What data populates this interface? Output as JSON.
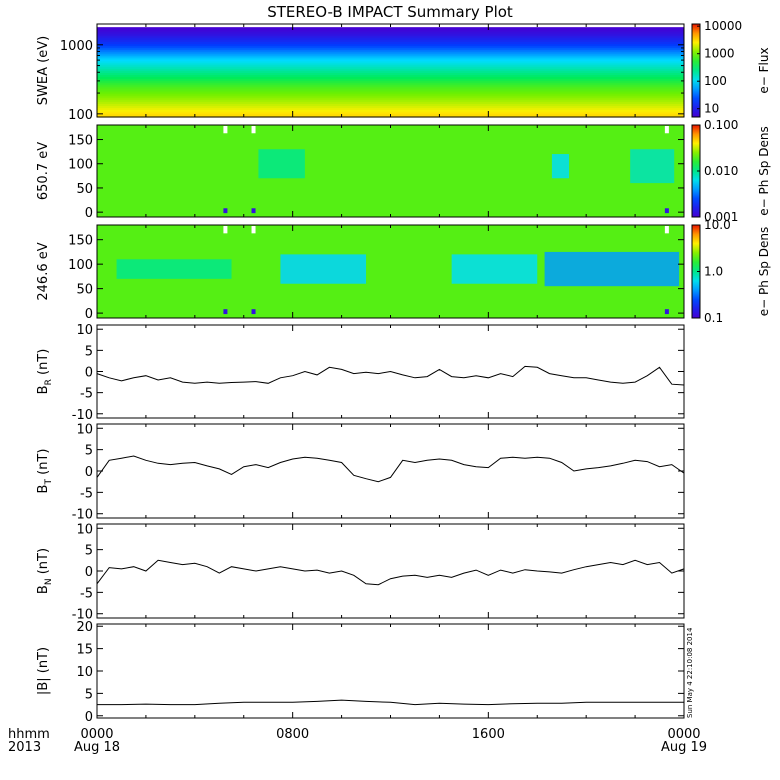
{
  "title": "STEREO-B IMPACT Summary Plot",
  "stamp": "Sun May  4 22:10:08 2014",
  "time_axis": {
    "corner_labels": [
      "hhmm",
      "2013"
    ],
    "ticks": [
      {
        "value": 0,
        "top": "0000",
        "bottom": "Aug 18"
      },
      {
        "value": 8,
        "top": "0800",
        "bottom": ""
      },
      {
        "value": 16,
        "top": "1600",
        "bottom": ""
      },
      {
        "value": 24,
        "top": "0000",
        "bottom": "Aug 19"
      }
    ],
    "range_hours": [
      0,
      24
    ]
  },
  "chart_data": [
    {
      "type": "heatmap",
      "ylabel": "SWEA (eV)",
      "y_scale": "log",
      "ylim": [
        90,
        2000
      ],
      "y_ticks": [
        {
          "v": 100,
          "t": "100"
        },
        {
          "v": 1000,
          "t": "1000"
        }
      ],
      "colorbar": {
        "label": "e− Flux",
        "scale": "log",
        "range": [
          5,
          12000
        ],
        "ticks": [
          {
            "v": 10,
            "t": "10"
          },
          {
            "v": 100,
            "t": "100"
          },
          {
            "v": 1000,
            "t": "1000"
          },
          {
            "v": 10000,
            "t": "10000"
          }
        ]
      },
      "energy_profile": [
        {
          "energy": 100,
          "flux": 3000
        },
        {
          "energy": 150,
          "flux": 1500
        },
        {
          "energy": 250,
          "flux": 700
        },
        {
          "energy": 400,
          "flux": 250
        },
        {
          "energy": 650,
          "flux": 80
        },
        {
          "energy": 1000,
          "flux": 20
        },
        {
          "energy": 1400,
          "flux": 8
        },
        {
          "energy": 1800,
          "flux": 5
        }
      ]
    },
    {
      "type": "heatmap",
      "ylabel": "650.7 eV",
      "ylim": [
        -10,
        180
      ],
      "y_ticks": [
        {
          "v": 0,
          "t": "0"
        },
        {
          "v": 50,
          "t": "50"
        },
        {
          "v": 100,
          "t": "100"
        },
        {
          "v": 150,
          "t": "150"
        }
      ],
      "colorbar": {
        "label": "e− Ph Sp Dens",
        "scale": "log",
        "range": [
          0.001,
          0.1
        ],
        "ticks": [
          {
            "v": 0.001,
            "t": "0.001"
          },
          {
            "v": 0.01,
            "t": "0.010"
          },
          {
            "v": 0.1,
            "t": "0.100"
          }
        ]
      },
      "background_level": 0.02,
      "depletions": [
        {
          "start": 6.6,
          "end": 8.5,
          "pitch_lo": 70,
          "pitch_hi": 130,
          "level": 0.01
        },
        {
          "start": 18.6,
          "end": 19.3,
          "pitch_lo": 70,
          "pitch_hi": 120,
          "level": 0.006
        },
        {
          "start": 21.8,
          "end": 23.6,
          "pitch_lo": 60,
          "pitch_hi": 130,
          "level": 0.008
        }
      ],
      "gaps_hours": [
        5.25,
        6.4,
        23.3
      ]
    },
    {
      "type": "heatmap",
      "ylabel": "246.6 eV",
      "ylim": [
        -10,
        180
      ],
      "y_ticks": [
        {
          "v": 0,
          "t": "0"
        },
        {
          "v": 50,
          "t": "50"
        },
        {
          "v": 100,
          "t": "100"
        },
        {
          "v": 150,
          "t": "150"
        }
      ],
      "colorbar": {
        "label": "e− Ph Sp Dens",
        "scale": "log",
        "range": [
          0.1,
          10
        ],
        "ticks": [
          {
            "v": 0.1,
            "t": "0.1"
          },
          {
            "v": 1,
            "t": "1.0"
          },
          {
            "v": 10,
            "t": "10.0"
          }
        ]
      },
      "background_level": 2.0,
      "depletions": [
        {
          "start": 0.8,
          "end": 5.5,
          "pitch_lo": 70,
          "pitch_hi": 110,
          "level": 1.0
        },
        {
          "start": 7.5,
          "end": 11.0,
          "pitch_lo": 60,
          "pitch_hi": 120,
          "level": 0.55
        },
        {
          "start": 14.5,
          "end": 18.0,
          "pitch_lo": 60,
          "pitch_hi": 120,
          "level": 0.6
        },
        {
          "start": 18.3,
          "end": 23.8,
          "pitch_lo": 55,
          "pitch_hi": 125,
          "level": 0.4
        }
      ],
      "gaps_hours": [
        5.25,
        6.4,
        23.3
      ]
    },
    {
      "type": "line",
      "ylabel": "B_R (nT)",
      "ylim": [
        -11,
        11
      ],
      "y_ticks": [
        -10,
        -5,
        0,
        5,
        10
      ],
      "x": [
        0,
        0.5,
        1,
        1.5,
        2,
        2.5,
        3,
        3.5,
        4,
        4.5,
        5,
        5.5,
        6,
        6.5,
        7,
        7.5,
        8,
        8.5,
        9,
        9.5,
        10,
        10.5,
        11,
        11.5,
        12,
        12.5,
        13,
        13.5,
        14,
        14.5,
        15,
        15.5,
        16,
        16.5,
        17,
        17.5,
        18,
        18.5,
        19,
        19.5,
        20,
        20.5,
        21,
        21.5,
        22,
        22.5,
        23,
        23.5,
        24
      ],
      "y": [
        -0.5,
        -1.5,
        -2.2,
        -1.5,
        -1.0,
        -2.0,
        -1.5,
        -2.5,
        -2.8,
        -2.5,
        -2.8,
        -2.6,
        -2.5,
        -2.4,
        -2.8,
        -1.5,
        -1.0,
        0.0,
        -0.8,
        1.0,
        0.5,
        -0.5,
        -0.2,
        -0.5,
        0.0,
        -0.8,
        -1.5,
        -1.2,
        0.5,
        -1.2,
        -1.5,
        -1.0,
        -1.5,
        -0.5,
        -1.2,
        1.2,
        1.0,
        -0.5,
        -1.0,
        -1.5,
        -1.5,
        -2.0,
        -2.5,
        -2.8,
        -2.5,
        -1.0,
        1.0,
        -3.0,
        -3.2
      ]
    },
    {
      "type": "line",
      "ylabel": "B_T (nT)",
      "ylim": [
        -11,
        11
      ],
      "y_ticks": [
        -10,
        -5,
        0,
        5,
        10
      ],
      "x": [
        0,
        0.5,
        1,
        1.5,
        2,
        2.5,
        3,
        3.5,
        4,
        4.5,
        5,
        5.5,
        6,
        6.5,
        7,
        7.5,
        8,
        8.5,
        9,
        9.5,
        10,
        10.5,
        11,
        11.5,
        12,
        12.5,
        13,
        13.5,
        14,
        14.5,
        15,
        15.5,
        16,
        16.5,
        17,
        17.5,
        18,
        18.5,
        19,
        19.5,
        20,
        20.5,
        21,
        21.5,
        22,
        22.5,
        23,
        23.5,
        24
      ],
      "y": [
        -1.5,
        2.5,
        3.0,
        3.5,
        2.5,
        1.8,
        1.5,
        1.8,
        2.0,
        1.2,
        0.5,
        -0.8,
        1.0,
        1.5,
        0.8,
        2.0,
        2.8,
        3.2,
        3.0,
        2.5,
        2.0,
        -1.0,
        -1.8,
        -2.5,
        -1.5,
        2.5,
        2.0,
        2.5,
        2.8,
        2.5,
        1.5,
        1.0,
        0.8,
        3.0,
        3.2,
        3.0,
        3.2,
        3.0,
        2.0,
        0.0,
        0.5,
        0.8,
        1.2,
        1.8,
        2.5,
        2.2,
        1.0,
        1.5,
        -0.5
      ]
    },
    {
      "type": "line",
      "ylabel": "B_N (nT)",
      "ylim": [
        -11,
        11
      ],
      "y_ticks": [
        -10,
        -5,
        0,
        5,
        10
      ],
      "x": [
        0,
        0.5,
        1,
        1.5,
        2,
        2.5,
        3,
        3.5,
        4,
        4.5,
        5,
        5.5,
        6,
        6.5,
        7,
        7.5,
        8,
        8.5,
        9,
        9.5,
        10,
        10.5,
        11,
        11.5,
        12,
        12.5,
        13,
        13.5,
        14,
        14.5,
        15,
        15.5,
        16,
        16.5,
        17,
        17.5,
        18,
        18.5,
        19,
        19.5,
        20,
        20.5,
        21,
        21.5,
        22,
        22.5,
        23,
        23.5,
        24
      ],
      "y": [
        -3.0,
        0.8,
        0.5,
        1.0,
        0.0,
        2.5,
        2.0,
        1.5,
        1.8,
        1.0,
        -0.5,
        1.0,
        0.5,
        0.0,
        0.5,
        1.0,
        0.5,
        0.0,
        0.2,
        -0.5,
        0.0,
        -1.0,
        -3.0,
        -3.2,
        -1.8,
        -1.2,
        -1.0,
        -1.5,
        -1.0,
        -1.5,
        -0.5,
        0.2,
        -1.0,
        0.2,
        -0.5,
        0.3,
        0.0,
        -0.2,
        -0.5,
        0.3,
        1.0,
        1.5,
        2.0,
        1.5,
        2.5,
        1.5,
        2.0,
        -0.5,
        0.5
      ]
    },
    {
      "type": "line",
      "ylabel": "|B| (nT)",
      "ylim": [
        -0.5,
        20.5
      ],
      "y_ticks": [
        0,
        5,
        10,
        15,
        20
      ],
      "x": [
        0,
        1,
        2,
        3,
        4,
        5,
        6,
        7,
        8,
        9,
        10,
        11,
        12,
        13,
        14,
        15,
        16,
        17,
        18,
        19,
        20,
        21,
        22,
        23,
        24
      ],
      "y": [
        2.5,
        2.5,
        2.6,
        2.5,
        2.5,
        2.8,
        3.0,
        3.0,
        3.0,
        3.2,
        3.5,
        3.2,
        3.0,
        2.5,
        2.8,
        2.6,
        2.5,
        2.7,
        2.8,
        2.8,
        3.0,
        3.0,
        3.0,
        3.0,
        3.0
      ]
    }
  ]
}
